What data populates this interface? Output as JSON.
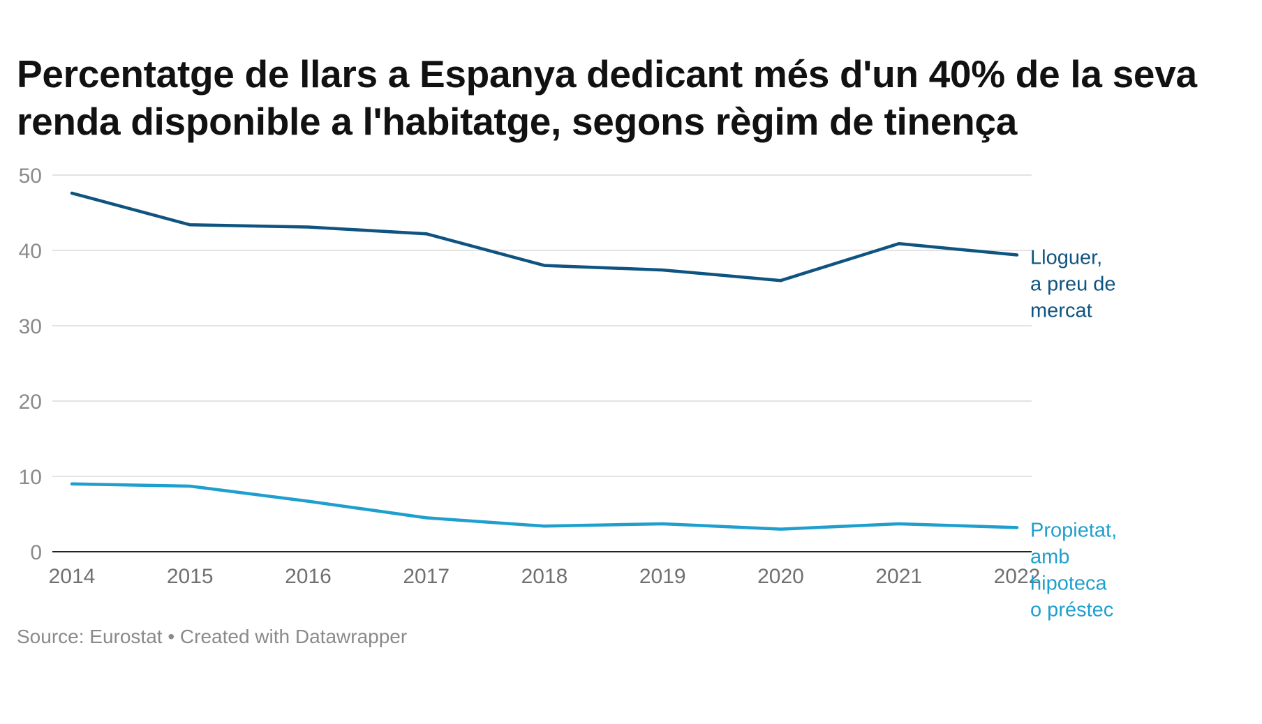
{
  "chart_data": {
    "type": "line",
    "title": "Percentatge de llars a Espanya dedicant més d'un 40% de la seva renda disponible a l'habitatge, segons règim de tinença",
    "xlabel": "",
    "ylabel": "",
    "x": [
      "2014",
      "2015",
      "2016",
      "2017",
      "2018",
      "2019",
      "2020",
      "2021",
      "2022"
    ],
    "ylim": [
      0,
      50
    ],
    "yticks": [
      0,
      10,
      20,
      30,
      40,
      50
    ],
    "grid": true,
    "legend": "direct-labels-right",
    "series": [
      {
        "name": "Lloguer, a preu de mercat",
        "label_lines": [
          "Lloguer,",
          "a preu de",
          "mercat"
        ],
        "color": "#0f5480",
        "values": [
          47.6,
          43.4,
          43.1,
          42.2,
          38.0,
          37.4,
          36.0,
          40.9,
          39.4
        ]
      },
      {
        "name": "Propietat, amb hipoteca o préstec",
        "label_lines": [
          "Propietat,",
          "amb",
          "hipoteca",
          "o préstec"
        ],
        "color": "#1f9fce",
        "values": [
          9.0,
          8.7,
          6.7,
          4.5,
          3.4,
          3.7,
          3.0,
          3.7,
          3.2
        ]
      }
    ]
  },
  "footer": {
    "source": "Source: Eurostat • Created with Datawrapper"
  }
}
